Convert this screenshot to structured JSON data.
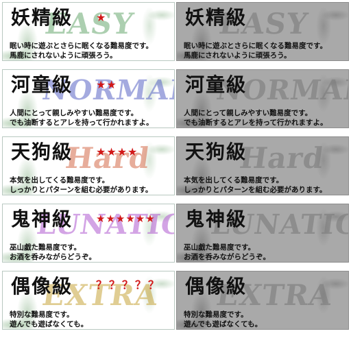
{
  "colors": {
    "star_red": "#d11818",
    "gray_card": "#a9a9a9",
    "easy_wm": "#6aa870",
    "normal_wm": "#5a66c6",
    "hard_wm": "#d46b4a",
    "lunatic_wm": "#b05ad0",
    "extra_wm": "#c7a53c"
  },
  "icons": {
    "star": "★",
    "question": "？"
  },
  "levels": [
    {
      "key": "easy",
      "title": "妖精級",
      "watermark": "EASY",
      "rating": "★",
      "desc1": "眠い時に遊ぶとさらに眠くなる難易度です。",
      "desc2": "馬鹿にされないように頑張ろう。"
    },
    {
      "key": "normal",
      "title": "河童級",
      "watermark": "NORMAL",
      "rating": "★★",
      "desc1": "人間にとって親しみやすい難易度です。",
      "desc2": "でも油断するとアレを持って行かれますよ。"
    },
    {
      "key": "hard",
      "title": "天狗級",
      "watermark": "Hard",
      "rating": "★★★★",
      "desc1": "本気を出してくる難易度です。",
      "desc2": "しっかりとパターンを組む必要があります。"
    },
    {
      "key": "lunatic",
      "title": "鬼神級",
      "watermark": "LUNATIC",
      "rating": "★★★★★★",
      "desc1": "巫山戯た難易度です。",
      "desc2": "お酒を呑みながらどうぞ。"
    },
    {
      "key": "extra",
      "title": "偶像級",
      "watermark": "EXTRA",
      "rating": "？？？？？",
      "desc1": "特別な難易度です。",
      "desc2": "遊んでも遊ばなくても。"
    }
  ]
}
